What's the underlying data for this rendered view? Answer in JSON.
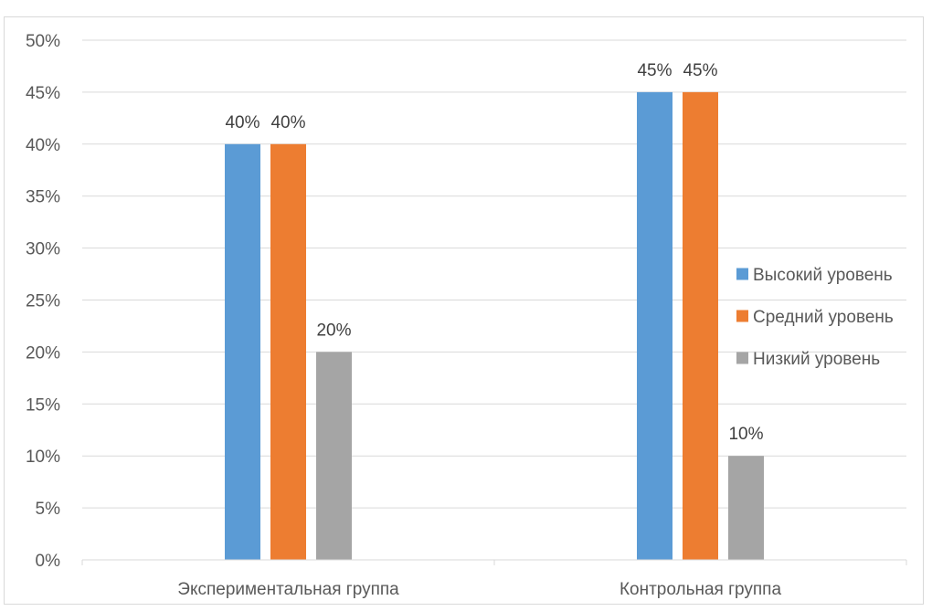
{
  "chart_data": {
    "type": "bar",
    "title": "",
    "xlabel": "",
    "ylabel": "",
    "categories": [
      "Экспериментальная группа",
      "Контрольная группа"
    ],
    "series": [
      {
        "name": "Высокий уровень",
        "color": "#5b9bd5",
        "values": [
          40,
          45
        ]
      },
      {
        "name": "Средний уровень",
        "color": "#ed7d31",
        "values": [
          40,
          45
        ]
      },
      {
        "name": "Низкий уровень",
        "color": "#a5a5a5",
        "values": [
          20,
          10
        ]
      }
    ],
    "ylim": [
      0,
      50
    ],
    "yticks": [
      0,
      5,
      10,
      15,
      20,
      25,
      30,
      35,
      40,
      45,
      50
    ],
    "y_tick_suffix": "%",
    "data_labels": true,
    "grid": true,
    "legend_position": "right"
  },
  "colors": {
    "gridline": "#d9d9d9",
    "axis": "#d9d9d9"
  }
}
